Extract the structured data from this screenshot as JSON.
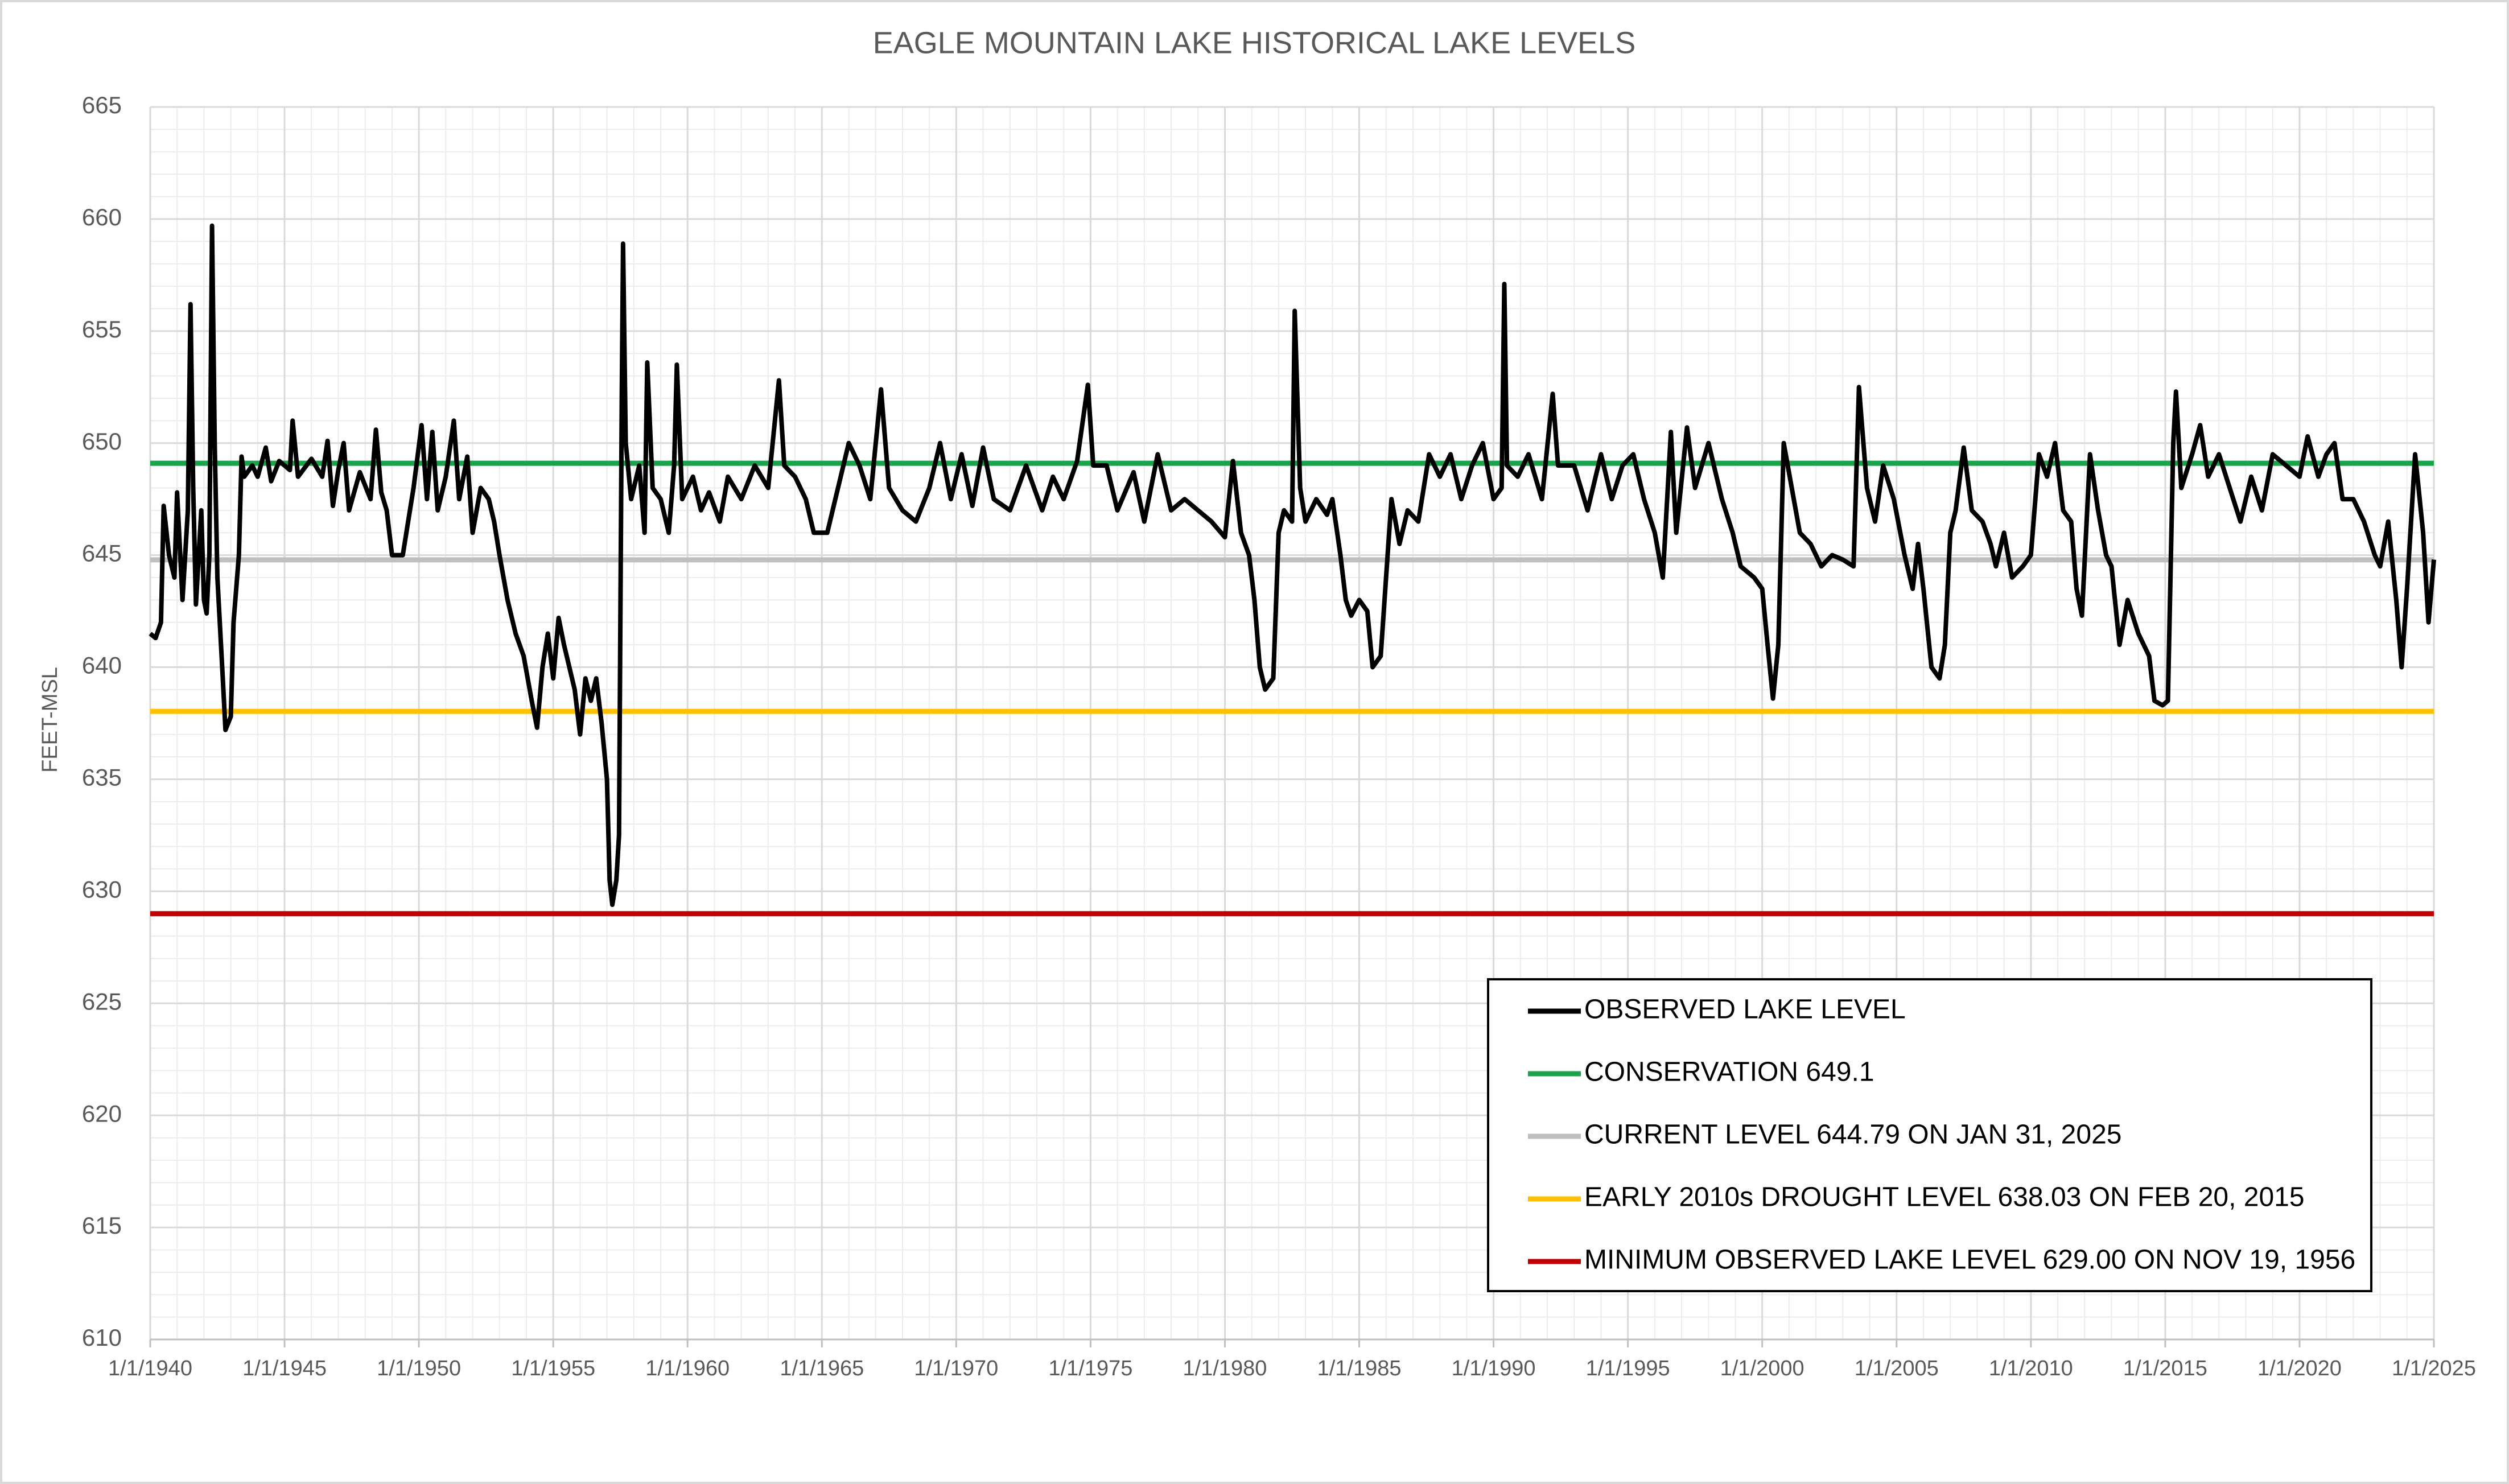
{
  "chart_data": {
    "type": "line",
    "title": "EAGLE MOUNTAIN LAKE HISTORICAL LAKE LEVELS",
    "y_label": "FEET-MSL",
    "xlim": [
      1940,
      2025
    ],
    "xticks": [
      {
        "value": 1940,
        "label": "1/1/1940"
      },
      {
        "value": 1945,
        "label": "1/1/1945"
      },
      {
        "value": 1950,
        "label": "1/1/1950"
      },
      {
        "value": 1955,
        "label": "1/1/1955"
      },
      {
        "value": 1960,
        "label": "1/1/1960"
      },
      {
        "value": 1965,
        "label": "1/1/1965"
      },
      {
        "value": 1970,
        "label": "1/1/1970"
      },
      {
        "value": 1975,
        "label": "1/1/1975"
      },
      {
        "value": 1980,
        "label": "1/1/1980"
      },
      {
        "value": 1985,
        "label": "1/1/1985"
      },
      {
        "value": 1990,
        "label": "1/1/1990"
      },
      {
        "value": 1995,
        "label": "1/1/1995"
      },
      {
        "value": 2000,
        "label": "1/1/2000"
      },
      {
        "value": 2005,
        "label": "1/1/2005"
      },
      {
        "value": 2010,
        "label": "1/1/2010"
      },
      {
        "value": 2015,
        "label": "1/1/2015"
      },
      {
        "value": 2020,
        "label": "1/1/2020"
      },
      {
        "value": 2025,
        "label": "1/1/2025"
      }
    ],
    "ylim": [
      610,
      665
    ],
    "yticks": [
      610,
      615,
      620,
      625,
      630,
      635,
      640,
      645,
      650,
      655,
      660,
      665
    ],
    "grid": true,
    "minor_grid": true,
    "legend": "lower right",
    "x": [
      1940.0,
      1940.2,
      1940.4,
      1940.5,
      1940.7,
      1940.9,
      1941.0,
      1941.2,
      1941.4,
      1941.5,
      1941.6,
      1941.7,
      1941.9,
      1942.0,
      1942.1,
      1942.2,
      1942.3,
      1942.4,
      1942.5,
      1942.7,
      1942.8,
      1943.0,
      1943.1,
      1943.3,
      1943.4,
      1943.5,
      1943.8,
      1944.0,
      1944.3,
      1944.5,
      1944.8,
      1945.2,
      1945.3,
      1945.5,
      1946.0,
      1946.4,
      1946.6,
      1946.8,
      1947.0,
      1947.2,
      1947.4,
      1947.8,
      1948.2,
      1948.4,
      1948.6,
      1948.8,
      1949.0,
      1949.4,
      1949.6,
      1949.8,
      1950.1,
      1950.3,
      1950.5,
      1950.7,
      1951.0,
      1951.3,
      1951.5,
      1951.8,
      1952.0,
      1952.3,
      1952.6,
      1952.8,
      1953.0,
      1953.3,
      1953.6,
      1953.9,
      1954.2,
      1954.4,
      1954.6,
      1954.8,
      1955.0,
      1955.2,
      1955.4,
      1955.6,
      1955.8,
      1956.0,
      1956.2,
      1956.4,
      1956.6,
      1956.8,
      1957.0,
      1957.1,
      1957.2,
      1957.35,
      1957.45,
      1957.55,
      1957.6,
      1957.7,
      1957.9,
      1958.2,
      1958.4,
      1958.5,
      1958.7,
      1959.0,
      1959.3,
      1959.5,
      1959.6,
      1959.8,
      1960.2,
      1960.5,
      1960.8,
      1961.2,
      1961.5,
      1962.0,
      1962.5,
      1963.0,
      1963.4,
      1963.6,
      1964.0,
      1964.4,
      1964.7,
      1965.2,
      1965.6,
      1966.0,
      1966.4,
      1966.8,
      1967.2,
      1967.5,
      1968.0,
      1968.5,
      1969.0,
      1969.4,
      1969.8,
      1970.2,
      1970.6,
      1971.0,
      1971.4,
      1972.0,
      1972.6,
      1973.2,
      1973.6,
      1974.0,
      1974.5,
      1974.9,
      1975.1,
      1975.6,
      1976.0,
      1976.6,
      1977.0,
      1977.5,
      1978.0,
      1978.5,
      1979.0,
      1979.5,
      1980.0,
      1980.3,
      1980.6,
      1980.9,
      1981.1,
      1981.3,
      1981.5,
      1981.8,
      1982.0,
      1982.2,
      1982.5,
      1982.6,
      1982.8,
      1983.0,
      1983.4,
      1983.8,
      1984.0,
      1984.3,
      1984.5,
      1984.7,
      1985.0,
      1985.3,
      1985.5,
      1985.8,
      1986.0,
      1986.2,
      1986.5,
      1986.8,
      1987.2,
      1987.6,
      1988.0,
      1988.4,
      1988.8,
      1989.2,
      1989.6,
      1990.0,
      1990.3,
      1990.4,
      1990.5,
      1990.9,
      1991.3,
      1991.8,
      1992.2,
      1992.4,
      1993.0,
      1993.5,
      1994.0,
      1994.4,
      1994.8,
      1995.2,
      1995.6,
      1996.0,
      1996.3,
      1996.6,
      1996.8,
      1997.2,
      1997.5,
      1998.0,
      1998.5,
      1998.9,
      1999.2,
      1999.7,
      2000.0,
      2000.2,
      2000.4,
      2000.6,
      2000.8,
      2001.1,
      2001.4,
      2001.8,
      2002.2,
      2002.6,
      2003.0,
      2003.4,
      2003.6,
      2003.9,
      2004.2,
      2004.5,
      2004.9,
      2005.3,
      2005.6,
      2005.8,
      2006.0,
      2006.3,
      2006.6,
      2006.8,
      2007.0,
      2007.2,
      2007.5,
      2007.8,
      2008.2,
      2008.5,
      2008.7,
      2009.0,
      2009.3,
      2009.7,
      2010.0,
      2010.3,
      2010.6,
      2010.9,
      2011.2,
      2011.5,
      2011.7,
      2011.9,
      2012.2,
      2012.5,
      2012.8,
      2013.0,
      2013.3,
      2013.6,
      2014.0,
      2014.4,
      2014.6,
      2014.9,
      2015.1,
      2015.3,
      2015.4,
      2015.6,
      2016.0,
      2016.3,
      2016.6,
      2017.0,
      2017.4,
      2017.8,
      2018.2,
      2018.6,
      2019.0,
      2019.5,
      2020.0,
      2020.3,
      2020.7,
      2021.0,
      2021.3,
      2021.6,
      2022.0,
      2022.4,
      2022.8,
      2023.0,
      2023.3,
      2023.6,
      2023.8,
      2024.0,
      2024.3,
      2024.6,
      2024.8,
      2025.0
    ],
    "series": [
      {
        "name": "OBSERVED LAKE LEVEL",
        "color": "#000000",
        "values": [
          641.5,
          641.3,
          642,
          647.2,
          645,
          644,
          647.8,
          643,
          647,
          656.2,
          648,
          642.8,
          647,
          643,
          642.4,
          645,
          659.7,
          650,
          644,
          639.5,
          637.2,
          637.8,
          642,
          645,
          649.4,
          648.5,
          649,
          648.5,
          649.8,
          648.3,
          649.2,
          648.8,
          651,
          648.5,
          649.3,
          648.5,
          650.1,
          647.2,
          648.8,
          650,
          647,
          648.7,
          647.5,
          650.6,
          647.8,
          647,
          645,
          645,
          646.5,
          648,
          650.8,
          647.5,
          650.5,
          647,
          648.5,
          651,
          647.5,
          649.4,
          646,
          648,
          647.5,
          646.5,
          645,
          643,
          641.5,
          640.5,
          638.5,
          637.3,
          640,
          641.5,
          639.5,
          642.2,
          641,
          640,
          639,
          637,
          639.5,
          638.5,
          639.5,
          637.5,
          635,
          630.5,
          629.4,
          630.5,
          632.5,
          652,
          658.9,
          650,
          647.5,
          649,
          646,
          653.6,
          648,
          647.5,
          646,
          649,
          653.5,
          647.5,
          648.5,
          647,
          647.8,
          646.5,
          648.5,
          647.5,
          649,
          648,
          652.8,
          649,
          648.5,
          647.5,
          646,
          646,
          648,
          650,
          649,
          647.5,
          652.4,
          648,
          647,
          646.5,
          648,
          650,
          647.5,
          649.5,
          647.2,
          649.8,
          647.5,
          647,
          649,
          647,
          648.5,
          647.5,
          649.2,
          652.6,
          649,
          649,
          647,
          648.7,
          646.5,
          649.5,
          647,
          647.5,
          647,
          646.5,
          645.8,
          649.2,
          646,
          645,
          643,
          640,
          639,
          639.5,
          646,
          647,
          646.5,
          655.9,
          648,
          646.5,
          647.5,
          646.8,
          647.5,
          645,
          643,
          642.3,
          643,
          642.5,
          640,
          640.5,
          644,
          647.5,
          645.5,
          647,
          646.5,
          649.5,
          648.5,
          649.5,
          647.5,
          649,
          650,
          647.5,
          648,
          657.1,
          649,
          648.5,
          649.5,
          647.5,
          652.2,
          649,
          649,
          647,
          649.5,
          647.5,
          649,
          649.5,
          647.5,
          646,
          644,
          650.5,
          646,
          650.7,
          648,
          650,
          647.5,
          646,
          644.5,
          644,
          643.5,
          641,
          638.6,
          641,
          650,
          648,
          646,
          645.5,
          644.5,
          645,
          644.8,
          644.5,
          652.5,
          648,
          646.5,
          649,
          647.5,
          645,
          643.5,
          645.5,
          643.5,
          640,
          639.5,
          641,
          646,
          647,
          649.8,
          647,
          646.5,
          645.5,
          644.5,
          646,
          644,
          644.5,
          645,
          649.5,
          648.5,
          650,
          647,
          646.5,
          643.5,
          642.3,
          649.5,
          647,
          645,
          644.5,
          641,
          643,
          641.5,
          640.5,
          638.5,
          638.3,
          638.5,
          650,
          652.3,
          648,
          649.5,
          650.8,
          648.5,
          649.5,
          648,
          646.5,
          648.5,
          647,
          649.5,
          649,
          648.5,
          650.3,
          648.5,
          649.5,
          650,
          647.5,
          647.5,
          646.5,
          645,
          644.5,
          646.5,
          643,
          640,
          643.5,
          649.5,
          646,
          642,
          644.8
        ]
      }
    ],
    "reference_lines": [
      {
        "name": "CONSERVATION 649.1",
        "color": "#1aa34a",
        "value": 649.1
      },
      {
        "name": "CURRENT LEVEL 644.79 ON JAN 31, 2025",
        "color": "#bfbfbf",
        "value": 644.79
      },
      {
        "name": "EARLY 2010s DROUGHT LEVEL 638.03 ON FEB 20, 2015",
        "color": "#ffc000",
        "value": 638.03
      },
      {
        "name": "MINIMUM OBSERVED LAKE LEVEL 629.00 ON NOV 19, 1956",
        "color": "#c00000",
        "value": 629.0
      }
    ]
  }
}
